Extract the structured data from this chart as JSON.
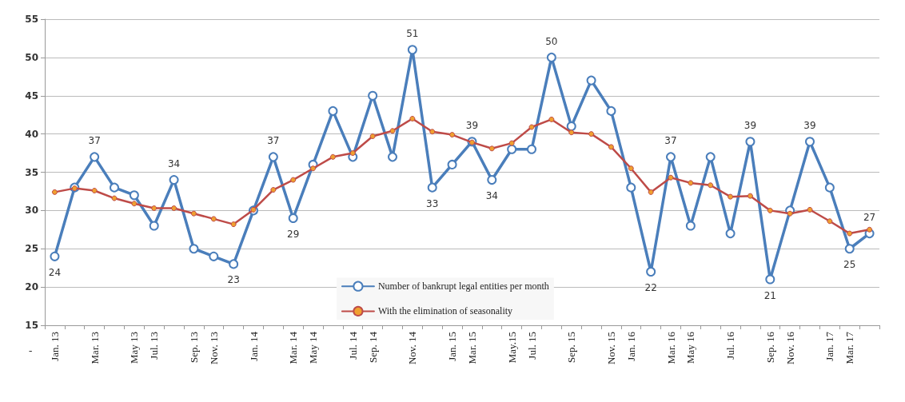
{
  "chart_data": {
    "type": "line",
    "categories": [
      "Jan. 13",
      null,
      "Mar. 13",
      null,
      "May 13",
      "Jul. 13",
      null,
      "Sep. 13",
      "Nov. 13",
      null,
      "Jan. 14",
      null,
      "Mar. 14",
      "May 14",
      null,
      "Jul. 14",
      "Sep. 14",
      null,
      "Nov. 14",
      null,
      "Jan. 15",
      "Mar. 15",
      null,
      "May.15",
      "Jul. 15",
      null,
      "Sep. 15",
      null,
      "Nov. 15",
      "Jan. 16",
      null,
      "Mar. 16",
      "May 16",
      null,
      "Jul. 16",
      null,
      "Sep. 16",
      "Nov. 16",
      null,
      "Jan. 17",
      "Mar. 17",
      null
    ],
    "annotations": [
      "-"
    ],
    "ylim": [
      15,
      55
    ],
    "yticks": [
      15,
      20,
      25,
      30,
      35,
      40,
      45,
      50,
      55
    ],
    "grid": "y",
    "legend": "bottom",
    "marker": "circle",
    "line_style": "solid",
    "series": [
      {
        "name": "Number of bankrupt legal entities per month",
        "color": "#4a7ebb",
        "values": [
          24,
          33,
          37,
          33,
          32,
          28,
          34,
          25,
          24,
          23,
          30,
          37,
          29,
          36,
          43,
          37,
          45,
          37,
          51,
          33,
          36,
          39,
          34,
          38,
          38,
          50,
          41,
          47,
          43,
          33,
          22,
          37,
          28,
          37,
          27,
          39,
          21,
          30,
          39,
          33,
          25,
          27
        ],
        "value_labels": [
          "24",
          null,
          "37",
          null,
          null,
          null,
          "34",
          null,
          null,
          "23",
          null,
          "37",
          "29",
          null,
          null,
          null,
          null,
          null,
          "51",
          "33",
          null,
          "39",
          "34",
          null,
          null,
          "50",
          null,
          null,
          null,
          null,
          "22",
          "37",
          null,
          null,
          null,
          "39",
          "21",
          null,
          "39",
          null,
          "25",
          "27"
        ]
      },
      {
        "name": "With the elimination of seasonality",
        "color": "#be4b48",
        "values": [
          32.4,
          32.9,
          32.6,
          31.6,
          30.9,
          30.3,
          30.3,
          29.6,
          28.9,
          28.2,
          30.1,
          32.7,
          34.0,
          35.5,
          37.0,
          37.5,
          39.7,
          40.4,
          42.0,
          40.3,
          39.9,
          38.9,
          38.1,
          38.8,
          40.9,
          41.9,
          40.2,
          40.0,
          38.3,
          35.5,
          32.4,
          34.3,
          33.6,
          33.3,
          31.8,
          31.9,
          30.0,
          29.6,
          30.1,
          28.6,
          27.0,
          27.5
        ]
      }
    ]
  }
}
